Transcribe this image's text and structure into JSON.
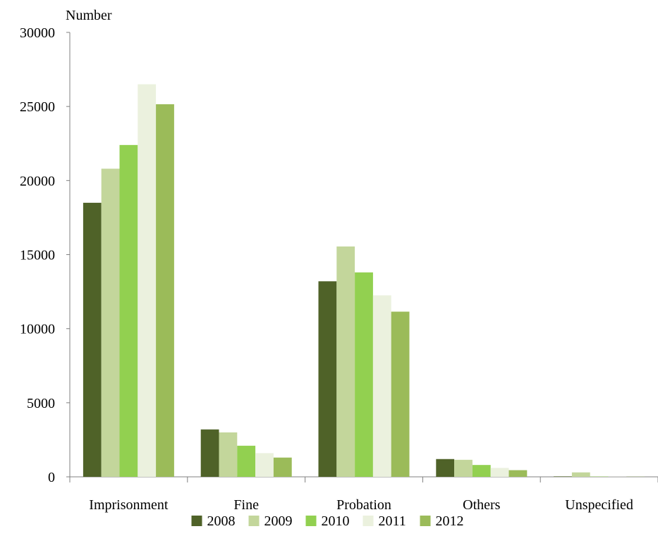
{
  "chart_data": {
    "type": "bar",
    "ylabel": "Number",
    "xlabel": "",
    "ylim": [
      0,
      30000
    ],
    "yticks": [
      0,
      5000,
      10000,
      15000,
      20000,
      25000,
      30000
    ],
    "grid": false,
    "legend_position": "bottom",
    "categories": [
      "Imprisonment",
      "Fine",
      "Probation",
      "Others",
      "Unspecified"
    ],
    "series": [
      {
        "name": "2008",
        "color": "#4f6228",
        "values": [
          18500,
          3200,
          13200,
          1200,
          30
        ]
      },
      {
        "name": "2009",
        "color": "#c3d69b",
        "values": [
          20800,
          3000,
          15550,
          1150,
          300
        ]
      },
      {
        "name": "2010",
        "color": "#92d050",
        "values": [
          22400,
          2100,
          13800,
          800,
          20
        ]
      },
      {
        "name": "2011",
        "color": "#ebf1de",
        "values": [
          26500,
          1600,
          12250,
          600,
          10
        ]
      },
      {
        "name": "2012",
        "color": "#9bbb59",
        "values": [
          25150,
          1300,
          11150,
          450,
          10
        ]
      }
    ]
  }
}
